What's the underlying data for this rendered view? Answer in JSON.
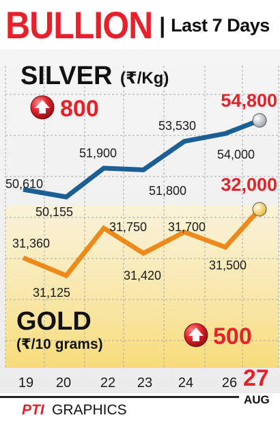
{
  "header": {
    "title": "BULLION",
    "separator": "|",
    "subtitle": "Last 7 Days"
  },
  "silver": {
    "name": "SILVER",
    "unit": "(₹/Kg)",
    "change": "800",
    "change_direction": "up",
    "latest_label": "54,800"
  },
  "gold": {
    "name": "GOLD",
    "unit": "(₹/10 grams)",
    "change": "500",
    "change_direction": "up",
    "latest_label": "32,000"
  },
  "date": {
    "day": "27",
    "month": "AUG"
  },
  "footer": {
    "brand": "PTI",
    "text": "GRAPHICS"
  },
  "colors": {
    "silver_line": "#1b5f95",
    "gold_line": "#ee8a1c",
    "accent_red": "#e8202a",
    "grid": "#a8a8a8",
    "background_top": "#f3f3f3",
    "background_bottom": "#fbe9a8"
  },
  "chart_data": {
    "type": "line",
    "categories": [
      "19",
      "20",
      "22",
      "23",
      "24",
      "26",
      "27"
    ],
    "series": [
      {
        "name": "SILVER",
        "values": [
          50610,
          50155,
          51900,
          51800,
          53530,
          54000,
          54800
        ],
        "labels": [
          "50,610",
          "50,155",
          "51,900",
          "51,800",
          "53,530",
          "54,000",
          "54,800"
        ]
      },
      {
        "name": "GOLD",
        "values": [
          31360,
          31125,
          31750,
          31420,
          31700,
          31500,
          32000
        ],
        "labels": [
          "31,360",
          "31,125",
          "31,750",
          "31,420",
          "31,700",
          "31,500",
          "32,000"
        ]
      }
    ],
    "grid": true
  }
}
